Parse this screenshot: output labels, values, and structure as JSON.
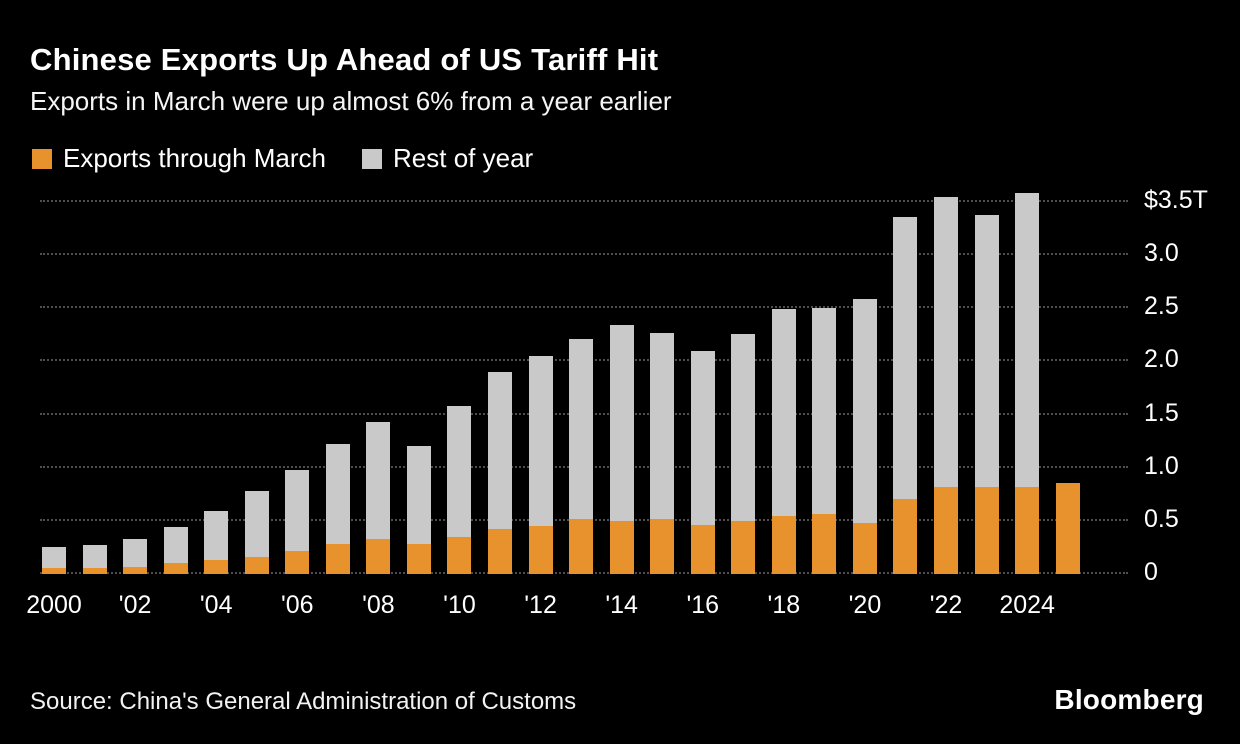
{
  "header": {
    "title": "Chinese Exports Up Ahead of US Tariff Hit",
    "subtitle": "Exports in March were up almost 6% from a year earlier"
  },
  "legend": [
    {
      "label": "Exports through March",
      "color": "#E8922D"
    },
    {
      "label": "Rest of year",
      "color": "#C9C9C9"
    }
  ],
  "footer": {
    "source": "Source: China's General Administration of Customs",
    "brand": "Bloomberg"
  },
  "chart_data": {
    "type": "bar",
    "stacked": true,
    "title": "Chinese Exports Up Ahead of US Tariff Hit",
    "subtitle": "Exports in March were up almost 6% from a year earlier",
    "unit": "trillion USD",
    "categories": [
      2000,
      2001,
      2002,
      2003,
      2004,
      2005,
      2006,
      2007,
      2008,
      2009,
      2010,
      2011,
      2012,
      2013,
      2014,
      2015,
      2016,
      2017,
      2018,
      2019,
      2020,
      2021,
      2022,
      2023,
      2024,
      2025
    ],
    "series": [
      {
        "name": "Exports through March",
        "color": "#E8922D",
        "values": [
          0.06,
          0.06,
          0.07,
          0.1,
          0.13,
          0.16,
          0.22,
          0.28,
          0.33,
          0.28,
          0.35,
          0.42,
          0.45,
          0.52,
          0.5,
          0.52,
          0.46,
          0.5,
          0.55,
          0.56,
          0.48,
          0.71,
          0.82,
          0.82,
          0.82,
          0.86
        ]
      },
      {
        "name": "Rest of year",
        "color": "#C9C9C9",
        "values": [
          0.19,
          0.21,
          0.26,
          0.34,
          0.46,
          0.62,
          0.76,
          0.94,
          1.1,
          0.92,
          1.23,
          1.48,
          1.6,
          1.69,
          1.84,
          1.75,
          1.64,
          1.76,
          1.94,
          1.94,
          2.11,
          2.65,
          2.73,
          2.56,
          2.76,
          0
        ]
      }
    ],
    "y_ticks": [
      {
        "value": 3.5,
        "label": "$3.5T"
      },
      {
        "value": 3.0,
        "label": "3.0"
      },
      {
        "value": 2.5,
        "label": "2.5"
      },
      {
        "value": 2.0,
        "label": "2.0"
      },
      {
        "value": 1.5,
        "label": "1.5"
      },
      {
        "value": 1.0,
        "label": "1.0"
      },
      {
        "value": 0.5,
        "label": "0.5"
      },
      {
        "value": 0,
        "label": "0"
      }
    ],
    "x_tick_labels": [
      "2000",
      "",
      "'02",
      "",
      "'04",
      "",
      "'06",
      "",
      "'08",
      "",
      "'10",
      "",
      "'12",
      "",
      "'14",
      "",
      "'16",
      "",
      "'18",
      "",
      "'20",
      "",
      "'22",
      "",
      "2024",
      ""
    ],
    "ylim": [
      0,
      3.65
    ],
    "grid": "dotted-horizontal",
    "legend_position": "top-left",
    "y_axis_side": "right"
  }
}
